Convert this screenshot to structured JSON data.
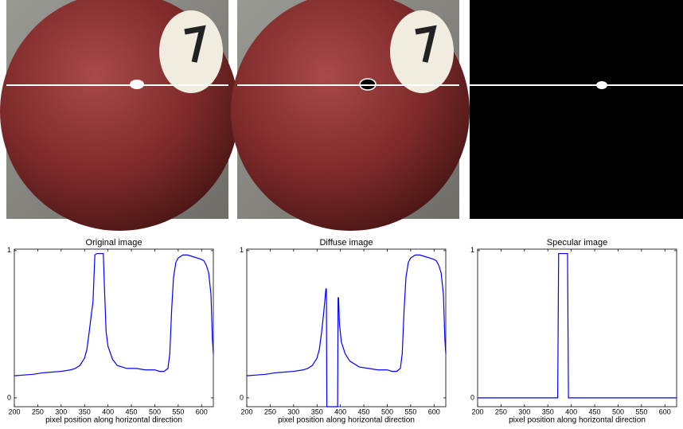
{
  "chart_data": [
    {
      "type": "line",
      "title": "Original image",
      "xlabel": "pixel position along horizontal direction",
      "xlim": [
        200,
        625
      ],
      "ylim": [
        -0.06,
        1.01
      ],
      "xticks": [
        200,
        250,
        300,
        350,
        400,
        450,
        500,
        550,
        600
      ],
      "yticks": [
        0,
        1
      ],
      "color": "#0000ff",
      "x": [
        200,
        220,
        240,
        260,
        280,
        300,
        320,
        330,
        340,
        350,
        355,
        360,
        365,
        368,
        372,
        376,
        380,
        385,
        390,
        393,
        396,
        400,
        410,
        420,
        440,
        460,
        480,
        500,
        510,
        520,
        528,
        532,
        536,
        540,
        545,
        550,
        560,
        570,
        580,
        590,
        600,
        605,
        610,
        615,
        620,
        623,
        625
      ],
      "values": [
        0.15,
        0.155,
        0.16,
        0.17,
        0.175,
        0.18,
        0.19,
        0.2,
        0.22,
        0.27,
        0.33,
        0.45,
        0.58,
        0.65,
        0.97,
        0.98,
        0.98,
        0.98,
        0.98,
        0.7,
        0.45,
        0.35,
        0.26,
        0.22,
        0.2,
        0.2,
        0.19,
        0.19,
        0.18,
        0.18,
        0.2,
        0.3,
        0.6,
        0.82,
        0.92,
        0.95,
        0.97,
        0.97,
        0.96,
        0.95,
        0.94,
        0.93,
        0.9,
        0.85,
        0.7,
        0.4,
        0.3
      ]
    },
    {
      "type": "line",
      "title": "Diffuse image",
      "xlabel": "pixel position along horizontal direction",
      "xlim": [
        200,
        625
      ],
      "ylim": [
        -0.06,
        1.01
      ],
      "xticks": [
        200,
        250,
        300,
        350,
        400,
        450,
        500,
        550,
        600
      ],
      "yticks": [
        0,
        1
      ],
      "color": "#0000ff",
      "x": [
        200,
        220,
        240,
        260,
        280,
        300,
        320,
        330,
        340,
        350,
        355,
        360,
        365,
        369,
        370,
        371,
        394,
        395,
        396,
        398,
        402,
        410,
        420,
        440,
        460,
        480,
        500,
        510,
        520,
        528,
        532,
        536,
        540,
        545,
        550,
        560,
        570,
        580,
        590,
        600,
        605,
        610,
        615,
        620,
        623,
        625
      ],
      "values": [
        0.15,
        0.155,
        0.16,
        0.17,
        0.175,
        0.18,
        0.19,
        0.2,
        0.22,
        0.27,
        0.33,
        0.45,
        0.6,
        0.74,
        0.74,
        -0.06,
        -0.06,
        0.68,
        0.68,
        0.5,
        0.38,
        0.3,
        0.25,
        0.21,
        0.2,
        0.19,
        0.19,
        0.18,
        0.18,
        0.2,
        0.3,
        0.6,
        0.82,
        0.92,
        0.95,
        0.97,
        0.97,
        0.96,
        0.95,
        0.94,
        0.93,
        0.9,
        0.85,
        0.7,
        0.4,
        0.3
      ]
    },
    {
      "type": "line",
      "title": "Specular image",
      "xlabel": "pixel position along horizontal direction",
      "xlim": [
        200,
        625
      ],
      "ylim": [
        -0.06,
        1.01
      ],
      "xticks": [
        200,
        250,
        300,
        350,
        400,
        450,
        500,
        550,
        600
      ],
      "yticks": [
        0,
        1
      ],
      "color": "#0000ff",
      "x": [
        200,
        371,
        373,
        392,
        394,
        625
      ],
      "values": [
        0,
        0,
        0.98,
        0.98,
        0,
        0
      ]
    }
  ]
}
